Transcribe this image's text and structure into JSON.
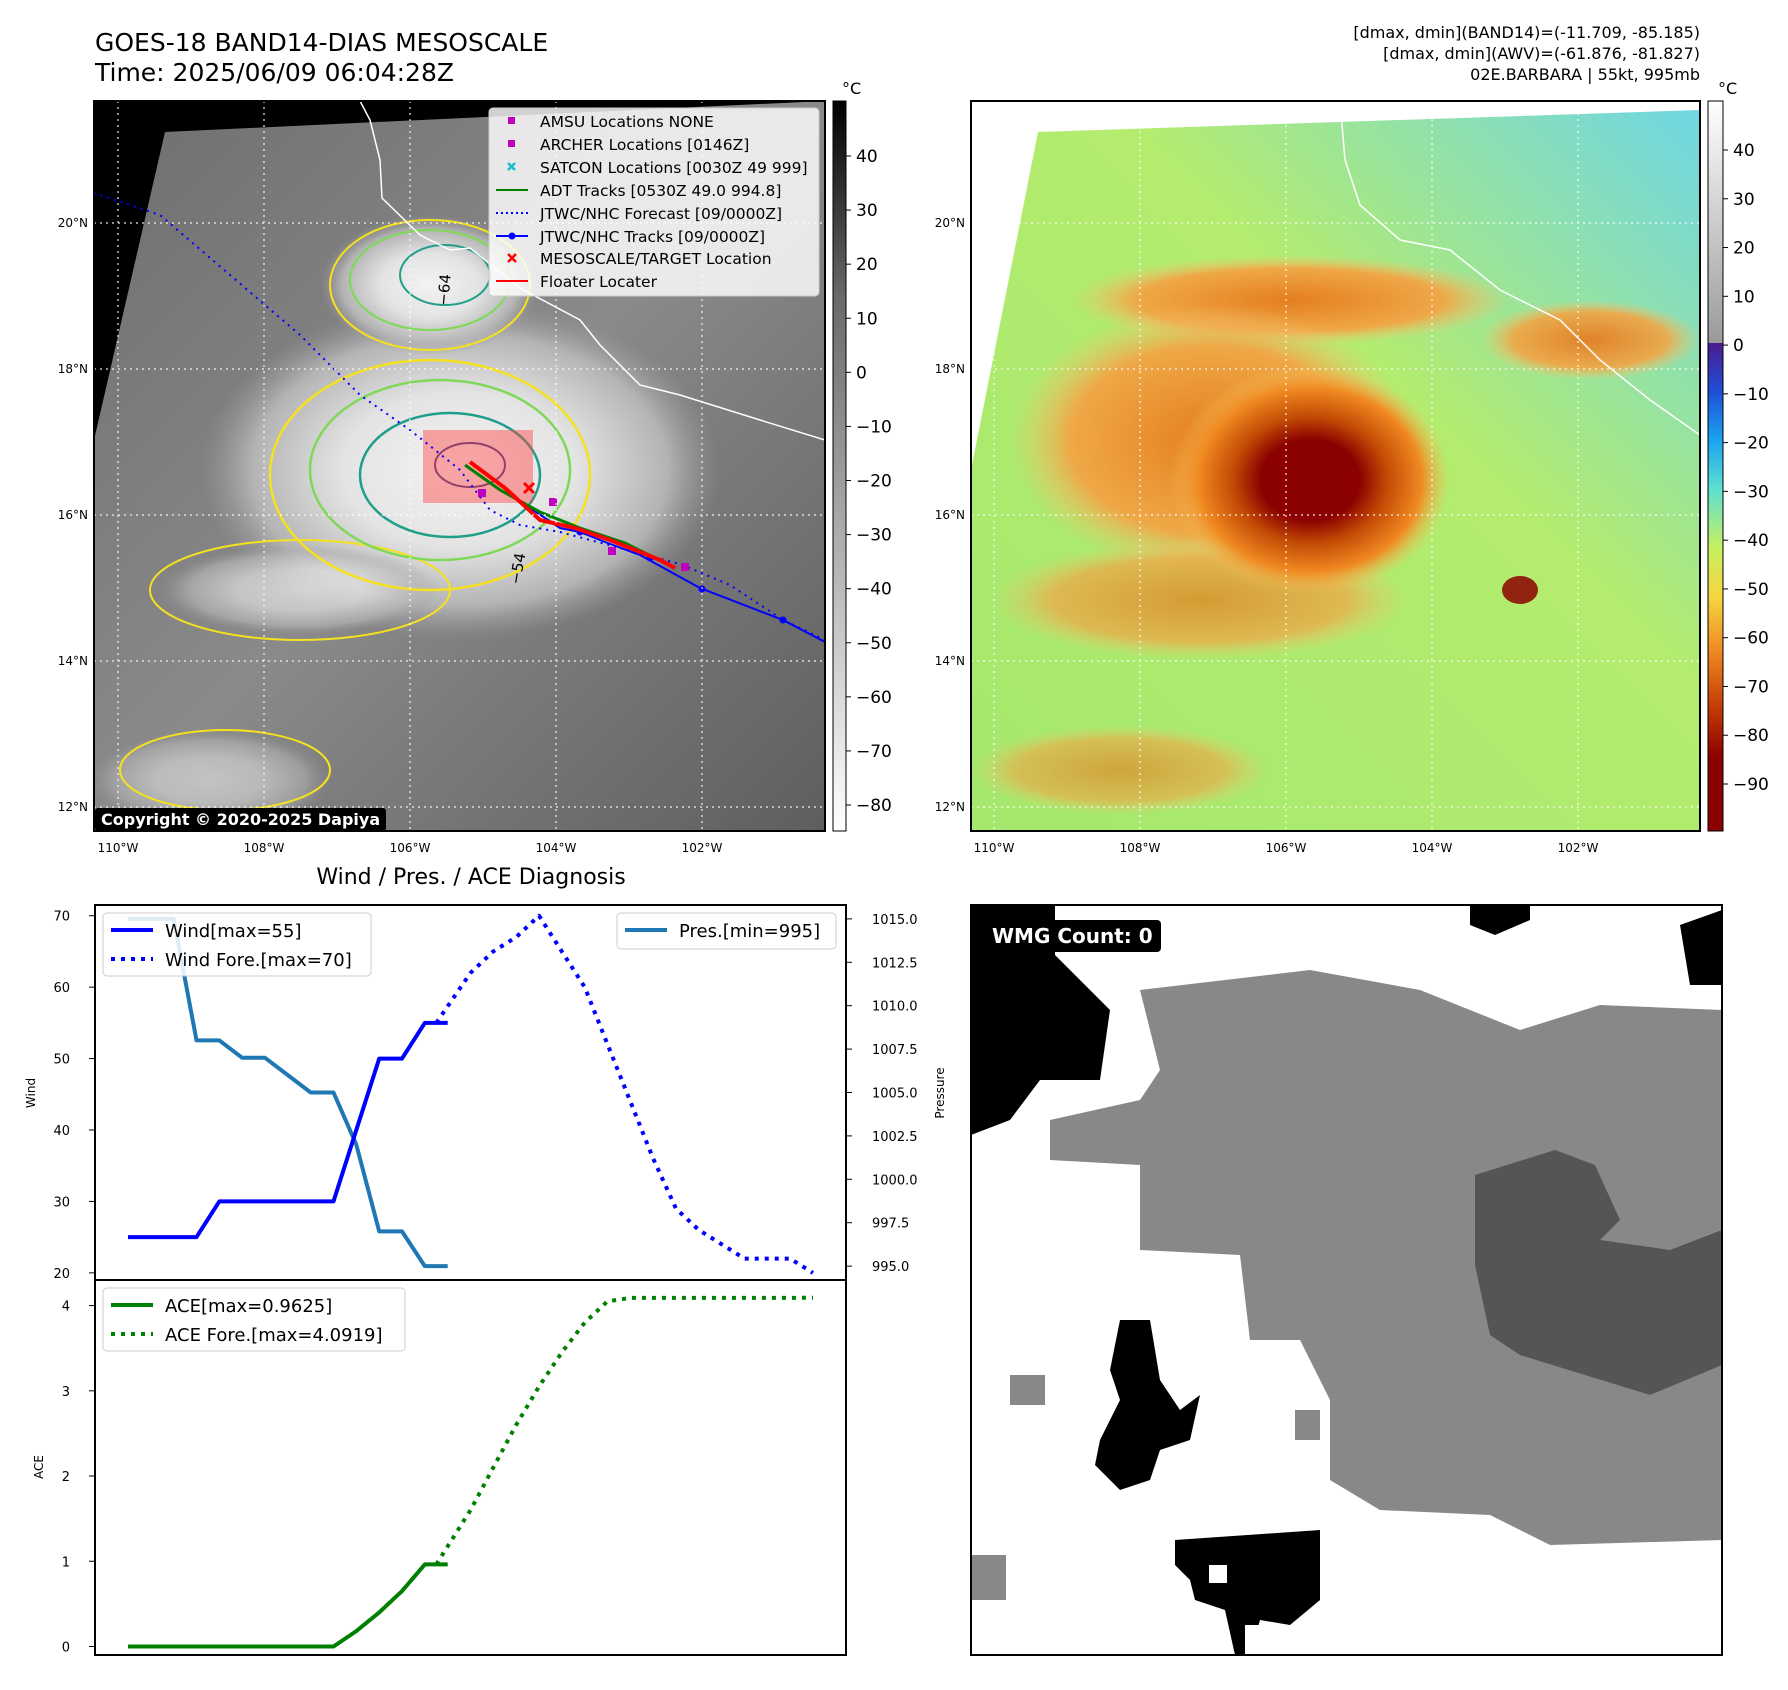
{
  "header": {
    "title_line1": "GOES-18 BAND14-DIAS MESOSCALE",
    "title_line2": "Time: 2025/06/09 06:04:28Z",
    "info_line1": "[dmax, dmin](BAND14)=(-11.709, -85.185)",
    "info_line2": "[dmax, dmin](AWV)=(-61.876, -81.827)",
    "info_line3": "02E.BARBARA | 55kt, 995mb"
  },
  "colors": {
    "wind": "#0000ff",
    "pressure": "#1f77b4",
    "ace": "#008000",
    "track_jtwc": "#0000ff",
    "floater": "#ff0000",
    "contour_yellow": "#f5e11e",
    "contour_green": "#7ed957",
    "contour_teal": "#1f9e89"
  },
  "map_panels": {
    "lon_labels": [
      "110°W",
      "108°W",
      "106°W",
      "104°W",
      "102°W"
    ],
    "lat_labels": [
      "20°N",
      "18°N",
      "16°N",
      "14°N",
      "12°N"
    ],
    "colorbar_unit": "°C",
    "ir_colorbar_ticks": [
      "40",
      "30",
      "20",
      "10",
      "0",
      "−10",
      "−20",
      "−30",
      "−40",
      "−50",
      "−60",
      "−70",
      "−80"
    ],
    "rgb_colorbar_ticks": [
      "40",
      "30",
      "20",
      "10",
      "0",
      "−10",
      "−20",
      "−30",
      "−40",
      "−50",
      "−60",
      "−70",
      "−80",
      "−90"
    ],
    "contour_labels": [
      "−64",
      "−54"
    ],
    "copyright": "Copyright © 2020-2025 Dapiya",
    "legend": [
      {
        "label": "AMSU Locations NONE",
        "icon": "square-marker",
        "color": "#bf00bf"
      },
      {
        "label": "ARCHER Locations [0146Z]",
        "icon": "square-marker",
        "color": "#bf00bf"
      },
      {
        "label": "SATCON Locations [0030Z 49 999]",
        "icon": "x-marker",
        "color": "#17becf"
      },
      {
        "label": "ADT Tracks [0530Z 49.0 994.8]",
        "icon": "solid-line",
        "color": "#008000"
      },
      {
        "label": "JTWC/NHC Forecast [09/0000Z]",
        "icon": "dotted-line",
        "color": "#0000ff"
      },
      {
        "label": "JTWC/NHC Tracks [09/0000Z]",
        "icon": "line-dot",
        "color": "#0000ff"
      },
      {
        "label": "MESOSCALE/TARGET Location",
        "icon": "x-marker",
        "color": "#ff0000"
      },
      {
        "label": "Floater Locater",
        "icon": "solid-line",
        "color": "#ff0000"
      }
    ]
  },
  "wmg": {
    "label": "WMG Count: 0"
  },
  "chart_data": [
    {
      "type": "line",
      "title": "Wind / Pres. / ACE Diagnosis",
      "ylabel": "Wind",
      "ylabel_right": "Pressure",
      "ylim": [
        19,
        71.5
      ],
      "ylim_right": [
        994.2,
        1015.8
      ],
      "yticks": [
        20,
        30,
        40,
        50,
        60,
        70
      ],
      "yticks_right": [
        "995.0",
        "997.5",
        "1000.0",
        "1002.5",
        "1005.0",
        "1007.5",
        "1010.0",
        "1012.5",
        "1015.0"
      ],
      "x": [
        0,
        1,
        2,
        3,
        4,
        5,
        6,
        7,
        8,
        9,
        10,
        11,
        12,
        13,
        14,
        15,
        16,
        17,
        18,
        19,
        20,
        21,
        22,
        23,
        24,
        25,
        26,
        27,
        28,
        29,
        30
      ],
      "series": [
        {
          "name": "Wind[max=55]",
          "axis": "left",
          "style": "solid",
          "x": [
            0,
            1,
            2,
            3,
            4,
            5,
            6,
            7,
            8,
            9,
            10,
            11,
            12,
            13,
            14
          ],
          "values": [
            25,
            25,
            25,
            25,
            30,
            30,
            30,
            30,
            30,
            30,
            40,
            50,
            50,
            55,
            55
          ]
        },
        {
          "name": "Wind Fore.[max=70]",
          "axis": "left",
          "style": "dotted",
          "x": [
            13.5,
            15,
            16,
            17,
            18,
            19,
            20,
            21,
            22,
            23,
            24,
            25,
            26,
            27,
            28,
            29,
            30
          ],
          "values": [
            55,
            62,
            65,
            67,
            70,
            65,
            60,
            52,
            44,
            36,
            29,
            26,
            24,
            22,
            22,
            22,
            20
          ]
        },
        {
          "name": "Pres.[min=995]",
          "axis": "right",
          "style": "solid",
          "x": [
            0,
            1,
            2,
            3,
            4,
            5,
            6,
            7,
            8,
            9,
            10,
            11,
            12,
            13,
            14
          ],
          "values": [
            1015,
            1015,
            1015,
            1008,
            1008,
            1007,
            1007,
            1006,
            1005,
            1005,
            1002,
            997,
            997,
            995,
            995
          ]
        }
      ]
    },
    {
      "type": "line",
      "ylabel": "ACE",
      "ylim": [
        -0.1,
        4.3
      ],
      "yticks": [
        0,
        1,
        2,
        3,
        4
      ],
      "series": [
        {
          "name": "ACE[max=0.9625]",
          "style": "solid",
          "x": [
            0,
            1,
            2,
            3,
            4,
            5,
            6,
            7,
            8,
            9,
            10,
            11,
            12,
            13,
            14
          ],
          "values": [
            0,
            0,
            0,
            0,
            0,
            0,
            0,
            0,
            0,
            0,
            0.18,
            0.4,
            0.65,
            0.9625,
            0.9625
          ]
        },
        {
          "name": "ACE Fore.[max=4.0919]",
          "style": "dotted",
          "x": [
            13.5,
            15,
            16,
            17,
            18,
            19,
            20,
            21,
            22,
            23,
            24,
            25,
            26,
            27,
            28,
            29,
            30
          ],
          "values": [
            0.9625,
            1.6,
            2.1,
            2.6,
            3.05,
            3.45,
            3.8,
            4.05,
            4.09,
            4.09,
            4.09,
            4.09,
            4.09,
            4.09,
            4.09,
            4.09,
            4.0919
          ]
        }
      ]
    }
  ]
}
